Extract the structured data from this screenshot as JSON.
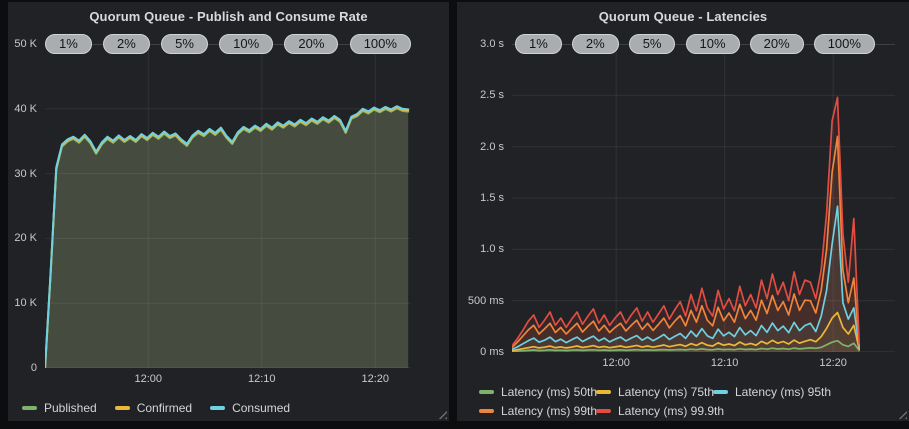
{
  "page": {
    "background": "#0c0d0e",
    "panel_background": "#202226"
  },
  "colors": {
    "green": "#7EB26D",
    "yellow": "#EAB839",
    "cyan": "#6ED0E0",
    "orange": "#EF843C",
    "red": "#E24D42",
    "area_fill": "#454c3f"
  },
  "chart_data": [
    {
      "type": "area",
      "title": "Quorum Queue - Publish and Consume Rate",
      "annotations": [
        "1%",
        "2%",
        "5%",
        "10%",
        "20%",
        "100%"
      ],
      "x_range": [
        0,
        32.25
      ],
      "x_ticks": [
        {
          "t": 9.1,
          "label": "12:00"
        },
        {
          "t": 19.1,
          "label": "12:10"
        },
        {
          "t": 29.1,
          "label": "12:20"
        }
      ],
      "y_range": [
        0,
        50
      ],
      "y_unit": "thousands of messages per second",
      "y_ticks": [
        {
          "v": 0,
          "label": "0"
        },
        {
          "v": 10,
          "label": "10 K"
        },
        {
          "v": 20,
          "label": "20 K"
        },
        {
          "v": 30,
          "label": "30 K"
        },
        {
          "v": 40,
          "label": "40 K"
        },
        {
          "v": 50,
          "label": "50 K"
        }
      ],
      "t_start": 0,
      "t_step": 0.5,
      "legend_position": "bottom",
      "grid": true,
      "series": [
        {
          "name": "Published",
          "color": "#7EB26D",
          "values": [
            0,
            15,
            31,
            34.5,
            35.3,
            35.7,
            35.1,
            36.0,
            35.0,
            33.4,
            34.8,
            35.7,
            35.1,
            35.9,
            35.2,
            35.8,
            35.2,
            36.1,
            35.5,
            36.3,
            35.7,
            36.5,
            35.8,
            36.2,
            35.3,
            34.6,
            35.9,
            36.6,
            36.1,
            36.9,
            36.3,
            37.1,
            35.8,
            34.9,
            36.4,
            37.2,
            36.7,
            37.4,
            36.9,
            37.7,
            37.1,
            37.9,
            37.4,
            38.1,
            37.6,
            38.3,
            37.8,
            38.5,
            38.0,
            38.7,
            38.2,
            38.9,
            38.3,
            36.6,
            38.8,
            39.2,
            40.0,
            39.6,
            40.2,
            39.8,
            40.3,
            39.9,
            40.4,
            40.0,
            39.9
          ]
        },
        {
          "name": "Confirmed",
          "color": "#EAB839",
          "values": [
            0,
            15,
            31,
            34.5,
            35.3,
            35.7,
            35.1,
            36.0,
            35.0,
            33.4,
            34.8,
            35.7,
            35.1,
            35.9,
            35.2,
            35.8,
            35.2,
            36.1,
            35.5,
            36.3,
            35.7,
            36.5,
            35.8,
            36.2,
            35.3,
            34.6,
            35.9,
            36.6,
            36.1,
            36.9,
            36.3,
            37.1,
            35.8,
            34.9,
            36.4,
            37.2,
            36.7,
            37.4,
            36.9,
            37.7,
            37.1,
            37.9,
            37.4,
            38.1,
            37.6,
            38.3,
            37.8,
            38.5,
            38.0,
            38.7,
            38.2,
            38.9,
            38.3,
            36.6,
            38.8,
            39.2,
            40.0,
            39.6,
            40.2,
            39.8,
            40.3,
            39.9,
            40.4,
            40.0,
            39.9
          ]
        },
        {
          "name": "Consumed",
          "color": "#6ED0E0",
          "fill": "#454c3f",
          "values": [
            0,
            15,
            31,
            34.5,
            35.3,
            35.7,
            35.1,
            36.0,
            35.0,
            33.4,
            34.8,
            35.7,
            35.1,
            35.9,
            35.2,
            35.8,
            35.2,
            36.1,
            35.5,
            36.3,
            35.7,
            36.5,
            35.8,
            36.2,
            35.3,
            34.6,
            35.9,
            36.6,
            36.1,
            36.9,
            36.3,
            37.1,
            35.8,
            34.9,
            36.4,
            37.2,
            36.7,
            37.4,
            36.9,
            37.7,
            37.1,
            37.9,
            37.4,
            38.1,
            37.6,
            38.3,
            37.8,
            38.5,
            38.0,
            38.7,
            38.2,
            38.9,
            38.3,
            36.6,
            38.8,
            39.2,
            40.0,
            39.6,
            40.2,
            39.8,
            40.3,
            39.9,
            40.4,
            40.0,
            39.9
          ]
        }
      ]
    },
    {
      "type": "line",
      "title": "Quorum Queue - Latencies",
      "annotations": [
        "1%",
        "2%",
        "5%",
        "10%",
        "20%",
        "100%"
      ],
      "x_range": [
        0,
        35.3
      ],
      "x_ticks": [
        {
          "t": 9.6,
          "label": "12:00"
        },
        {
          "t": 19.6,
          "label": "12:10"
        },
        {
          "t": 29.6,
          "label": "12:20"
        }
      ],
      "y_range": [
        0,
        3000
      ],
      "y_unit": "milliseconds",
      "y_ticks": [
        {
          "v": 0,
          "label": "0 ms"
        },
        {
          "v": 500,
          "label": "500 ms"
        },
        {
          "v": 1000,
          "label": "1.0 s"
        },
        {
          "v": 1500,
          "label": "1.5 s"
        },
        {
          "v": 2000,
          "label": "2.0 s"
        },
        {
          "v": 2500,
          "label": "2.5 s"
        },
        {
          "v": 3000,
          "label": "3.0 s"
        }
      ],
      "t_start": 0,
      "t_step": 0.5,
      "legend_position": "bottom",
      "grid": true,
      "series": [
        {
          "name": "Latency (ms) 50th",
          "color": "#7EB26D",
          "fill_alpha": 0.06,
          "values": [
            6,
            9,
            13,
            16,
            19,
            15,
            17,
            20,
            16,
            18,
            15,
            18,
            20,
            16,
            19,
            21,
            17,
            19,
            16,
            18,
            20,
            17,
            19,
            22,
            18,
            20,
            18,
            20,
            23,
            19,
            21,
            24,
            20,
            27,
            22,
            30,
            23,
            21,
            29,
            23,
            26,
            22,
            31,
            24,
            28,
            23,
            34,
            27,
            37,
            29,
            34,
            27,
            38,
            30,
            35,
            40,
            36,
            45,
            70,
            95,
            110,
            70,
            55,
            85,
            15
          ]
        },
        {
          "name": "Latency (ms) 75th",
          "color": "#EAB839",
          "fill_alpha": 0.06,
          "values": [
            12,
            22,
            32,
            42,
            52,
            40,
            47,
            57,
            42,
            50,
            40,
            48,
            58,
            44,
            52,
            62,
            46,
            54,
            42,
            50,
            58,
            46,
            54,
            64,
            48,
            58,
            47,
            57,
            68,
            52,
            62,
            72,
            56,
            82,
            64,
            92,
            66,
            58,
            90,
            66,
            78,
            62,
            96,
            70,
            84,
            66,
            104,
            80,
            114,
            86,
            102,
            78,
            116,
            86,
            104,
            120,
            100,
            150,
            230,
            330,
            385,
            240,
            175,
            260,
            30
          ]
        },
        {
          "name": "Latency (ms) 95th",
          "color": "#6ED0E0",
          "fill_alpha": 0.07,
          "values": [
            25,
            50,
            80,
            110,
            135,
            95,
            115,
            145,
            100,
            125,
            92,
            120,
            145,
            102,
            130,
            155,
            108,
            135,
            98,
            125,
            145,
            108,
            135,
            160,
            115,
            145,
            110,
            138,
            170,
            122,
            152,
            180,
            132,
            205,
            150,
            228,
            158,
            132,
            222,
            158,
            192,
            150,
            238,
            168,
            208,
            160,
            258,
            192,
            282,
            208,
            252,
            188,
            288,
            208,
            258,
            280,
            200,
            350,
            600,
            1050,
            1420,
            480,
            320,
            430,
            45
          ]
        },
        {
          "name": "Latency (ms) 99th",
          "color": "#EF843C",
          "fill_alpha": 0.1,
          "values": [
            45,
            95,
            155,
            215,
            260,
            175,
            225,
            280,
            190,
            240,
            175,
            230,
            280,
            195,
            250,
            300,
            205,
            260,
            190,
            240,
            280,
            205,
            260,
            310,
            220,
            280,
            210,
            270,
            330,
            235,
            300,
            355,
            255,
            405,
            290,
            450,
            310,
            255,
            435,
            305,
            380,
            290,
            465,
            325,
            405,
            310,
            505,
            375,
            550,
            405,
            490,
            360,
            565,
            405,
            505,
            500,
            380,
            600,
            1000,
            1750,
            2100,
            800,
            480,
            720,
            60
          ]
        },
        {
          "name": "Latency (ms) 99.9th",
          "color": "#E24D42",
          "fill_alpha": 0.1,
          "values": [
            60,
            130,
            210,
            300,
            360,
            240,
            310,
            390,
            260,
            330,
            240,
            320,
            390,
            270,
            350,
            420,
            280,
            360,
            260,
            330,
            390,
            280,
            360,
            430,
            300,
            390,
            290,
            370,
            450,
            320,
            410,
            490,
            350,
            560,
            400,
            620,
            430,
            350,
            600,
            420,
            520,
            400,
            640,
            450,
            560,
            430,
            700,
            520,
            760,
            560,
            680,
            500,
            780,
            560,
            700,
            680,
            520,
            800,
            1350,
            2250,
            2480,
            1150,
            680,
            1300,
            90
          ]
        }
      ]
    }
  ]
}
